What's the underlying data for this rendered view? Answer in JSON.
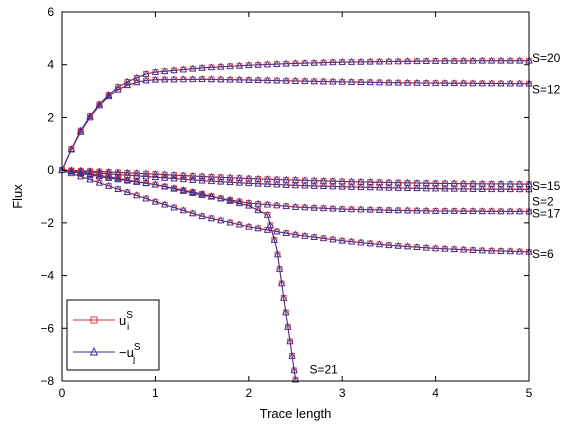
{
  "chart_data": {
    "type": "line",
    "title": "",
    "xlabel": "Trace length",
    "ylabel": "Flux",
    "xlim": [
      0,
      5
    ],
    "ylim": [
      -8,
      6
    ],
    "xticks": [
      "0",
      "1",
      "2",
      "3",
      "4",
      "5"
    ],
    "yticks": [
      "-8",
      "-6",
      "-4",
      "-2",
      "0",
      "2",
      "4",
      "6"
    ],
    "grid": false,
    "legend": {
      "placement": "bottom-left",
      "entries": [
        {
          "base": "u",
          "sub": "i",
          "sup": "S",
          "color": "#e0302a",
          "marker": "square"
        },
        {
          "base": "−u",
          "sub": "j",
          "sup": "S",
          "color": "#2f2f99",
          "marker": "triangle"
        }
      ]
    },
    "series": [
      {
        "label": "S=20",
        "x": [
          0,
          0.05,
          0.1,
          0.2,
          0.3,
          0.4,
          0.5,
          0.6,
          0.7,
          0.8,
          0.9,
          1.0,
          1.5,
          2.0,
          2.5,
          3.0,
          3.5,
          4.0,
          4.5,
          5.0
        ],
        "y": [
          0,
          0.4,
          0.8,
          1.5,
          2.05,
          2.5,
          2.85,
          3.15,
          3.35,
          3.5,
          3.65,
          3.72,
          3.88,
          3.98,
          4.05,
          4.1,
          4.12,
          4.14,
          4.15,
          4.15
        ]
      },
      {
        "label": "S=12",
        "x": [
          0,
          0.05,
          0.1,
          0.2,
          0.3,
          0.4,
          0.5,
          0.6,
          0.7,
          0.8,
          0.9,
          1.0,
          1.5,
          2.0,
          2.5,
          3.0,
          3.5,
          4.0,
          4.5,
          5.0
        ],
        "y": [
          0,
          0.38,
          0.78,
          1.45,
          2.0,
          2.45,
          2.8,
          3.05,
          3.22,
          3.33,
          3.4,
          3.43,
          3.45,
          3.42,
          3.38,
          3.35,
          3.32,
          3.3,
          3.29,
          3.28
        ]
      },
      {
        "label": "S=15",
        "x": [
          0,
          0.25,
          0.5,
          1.0,
          1.5,
          2.0,
          2.5,
          3.0,
          3.5,
          4.0,
          4.5,
          5.0
        ],
        "y": [
          0,
          -0.03,
          -0.07,
          -0.15,
          -0.24,
          -0.32,
          -0.38,
          -0.43,
          -0.47,
          -0.5,
          -0.52,
          -0.53
        ]
      },
      {
        "label": "S=2",
        "x": [
          0,
          0.25,
          0.5,
          1.0,
          1.5,
          2.0,
          2.5,
          3.0,
          3.5,
          4.0,
          4.5,
          5.0
        ],
        "y": [
          0,
          -0.07,
          -0.14,
          -0.27,
          -0.4,
          -0.5,
          -0.58,
          -0.63,
          -0.67,
          -0.7,
          -0.72,
          -0.73
        ]
      },
      {
        "label": "S=17",
        "x": [
          0,
          0.25,
          0.5,
          1.0,
          1.5,
          2.0,
          2.5,
          3.0,
          3.5,
          4.0,
          4.5,
          5.0
        ],
        "y": [
          0,
          -0.12,
          -0.25,
          -0.55,
          -0.95,
          -1.25,
          -1.4,
          -1.48,
          -1.52,
          -1.55,
          -1.56,
          -1.57
        ]
      },
      {
        "label": "S=6",
        "x": [
          0,
          0.25,
          0.5,
          1.0,
          1.5,
          2.0,
          2.5,
          3.0,
          3.5,
          4.0,
          4.5,
          5.0
        ],
        "y": [
          0,
          -0.3,
          -0.6,
          -1.2,
          -1.75,
          -2.15,
          -2.45,
          -2.68,
          -2.85,
          -2.97,
          -3.05,
          -3.1
        ]
      },
      {
        "label": "S=21",
        "x": [
          0,
          0.25,
          0.5,
          1.0,
          1.5,
          2.0,
          2.2,
          2.3,
          2.4,
          2.5
        ],
        "y": [
          0,
          -0.15,
          -0.3,
          -0.55,
          -0.9,
          -1.35,
          -1.7,
          -3.0,
          -5.5,
          -7.95
        ]
      }
    ]
  }
}
